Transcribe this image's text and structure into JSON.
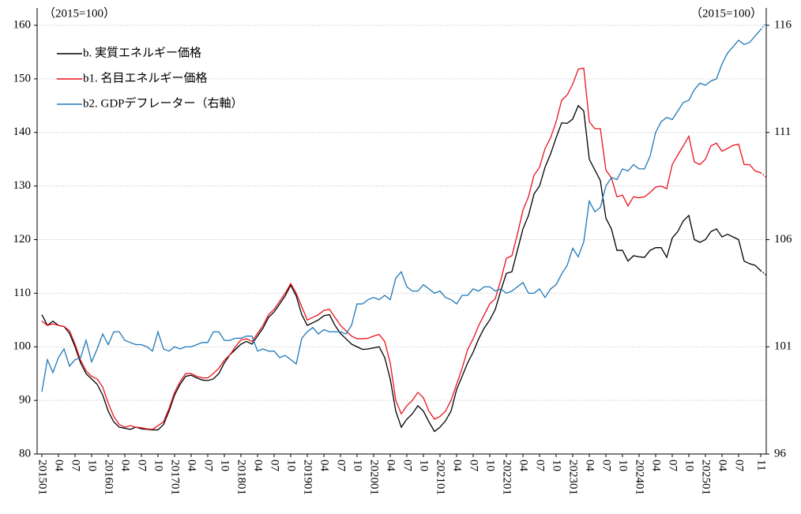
{
  "chart_data": {
    "type": "line",
    "left_note": "（2015=100）",
    "right_note": "（2015=100）",
    "categories": [
      "201501",
      null,
      null,
      "04",
      null,
      null,
      "07",
      null,
      null,
      "10",
      null,
      null,
      "201601",
      null,
      null,
      "04",
      null,
      null,
      "07",
      null,
      null,
      "10",
      null,
      null,
      "201701",
      null,
      null,
      "04",
      null,
      null,
      "07",
      null,
      null,
      "10",
      null,
      null,
      "201801",
      null,
      null,
      "04",
      null,
      null,
      "07",
      null,
      null,
      "10",
      null,
      null,
      "201901",
      null,
      null,
      "04",
      null,
      null,
      "07",
      null,
      null,
      "10",
      null,
      null,
      "202001",
      null,
      null,
      "04",
      null,
      null,
      "07",
      null,
      null,
      "10",
      null,
      null,
      "202101",
      null,
      null,
      "04",
      null,
      null,
      "07",
      null,
      null,
      "10",
      null,
      null,
      "202201",
      null,
      null,
      "04",
      null,
      null,
      "07",
      null,
      null,
      "10",
      null,
      null,
      "202301",
      null,
      null,
      "04",
      null,
      null,
      "07",
      null,
      null,
      "10",
      null,
      null,
      "202401",
      null,
      null,
      "04",
      null,
      null,
      "07",
      null,
      null,
      "10",
      null,
      null,
      "202501",
      null,
      null,
      "04",
      null,
      null,
      "07",
      null,
      null,
      null,
      "11",
      null
    ],
    "ylim": [
      80,
      160
    ],
    "yticks": [
      80,
      90,
      100,
      110,
      120,
      130,
      140,
      150,
      160
    ],
    "y2lim": [
      96,
      116
    ],
    "y2ticks": [
      96,
      101,
      106,
      111,
      116
    ],
    "grid": true,
    "legend": "upper left",
    "tail_style": "dotted",
    "series": [
      {
        "name": "b. 実質エネルギー価格",
        "color": "#000000",
        "values": [
          106,
          104,
          104.8,
          104,
          103.8,
          102.5,
          100,
          97,
          95,
          94,
          93,
          91,
          88,
          86,
          85,
          84.8,
          84.6,
          85,
          84.7,
          84.6,
          84.5,
          84.5,
          85.5,
          88,
          91,
          93,
          94.5,
          94.7,
          94.2,
          93.8,
          93.7,
          94,
          95,
          97,
          98.5,
          99.5,
          100.5,
          101,
          100.5,
          102,
          103.5,
          105.5,
          106.5,
          108,
          109.5,
          111.5,
          109.5,
          106,
          104,
          104.5,
          105,
          105.8,
          106,
          104,
          102.5,
          101.5,
          100.5,
          100,
          99.5,
          99.6,
          99.8,
          100,
          98,
          94,
          88,
          85,
          86.5,
          87.5,
          89,
          88,
          86,
          84.2,
          85,
          86.2,
          88,
          92,
          94.5,
          97,
          99,
          101.5,
          103.5,
          105,
          107,
          110.5,
          113.7,
          114,
          118,
          122,
          124.5,
          128.5,
          130,
          133.5,
          136,
          139,
          141.8,
          141.7,
          142.5,
          145,
          144,
          135,
          133,
          131,
          124,
          122,
          118,
          118,
          116,
          117,
          116.8,
          116.7,
          118,
          118.5,
          118.5,
          116.7,
          120.3,
          121.5,
          123.5,
          124.5,
          120,
          119.5,
          120,
          121.5,
          122,
          120.5,
          121,
          120.5,
          120,
          116,
          115.5,
          115.2,
          114.2,
          113.4
        ]
      },
      {
        "name": "b1. 名目エネルギー価格",
        "color": "#e8141c",
        "values": [
          104.8,
          104,
          104.3,
          104,
          103.8,
          103,
          100.5,
          97.5,
          95.5,
          94.5,
          94,
          92.5,
          89.5,
          87,
          85.5,
          85,
          85.3,
          85,
          84.9,
          84.7,
          84.6,
          85.3,
          86,
          88.5,
          91.5,
          93.5,
          95,
          95,
          94.5,
          94.2,
          94.2,
          95,
          96,
          97.5,
          98.5,
          100,
          101.3,
          101.5,
          101,
          102.5,
          104,
          106,
          107,
          108.5,
          110,
          111.8,
          110,
          107.5,
          105,
          105.5,
          106,
          106.8,
          107,
          105.5,
          104,
          103,
          102,
          101.5,
          101.5,
          101.6,
          102,
          102.3,
          101,
          97,
          90,
          87.5,
          89,
          90,
          91.5,
          90.5,
          88,
          86.5,
          87,
          88,
          90,
          93,
          96,
          99.5,
          101.5,
          104,
          106,
          108,
          109,
          112.5,
          116.5,
          117,
          121,
          125.5,
          128,
          132,
          133.5,
          137,
          139,
          142,
          146,
          147,
          149,
          151.8,
          152,
          142,
          140.7,
          140.7,
          133,
          131.5,
          128,
          128.3,
          126.3,
          128,
          127.8,
          128,
          128.8,
          129.8,
          130,
          129.5,
          134,
          135.8,
          137.5,
          139.3,
          134.5,
          134,
          135,
          137.5,
          138,
          136.5,
          137,
          137.6,
          137.8,
          134,
          134,
          132.8,
          132.5,
          131.6
        ]
      },
      {
        "name": "b2. GDPデフレーター（右軸）",
        "color": "#1f78b8",
        "axis": "y2",
        "values": [
          98.9,
          100.4,
          99.8,
          100.5,
          100.9,
          100.1,
          100.4,
          100.5,
          101.3,
          100.3,
          100.9,
          101.6,
          101.1,
          101.7,
          101.7,
          101.3,
          101.2,
          101.1,
          101.1,
          101,
          100.8,
          101.7,
          100.9,
          100.8,
          101,
          100.9,
          101,
          101,
          101.1,
          101.2,
          101.2,
          101.7,
          101.7,
          101.3,
          101.3,
          101.4,
          101.4,
          101.5,
          101.5,
          100.8,
          100.9,
          100.8,
          100.8,
          100.5,
          100.6,
          100.4,
          100.2,
          101.4,
          101.7,
          101.9,
          101.6,
          101.8,
          101.7,
          101.7,
          101.7,
          101.6,
          102,
          103,
          103,
          103.2,
          103.3,
          103.2,
          103.4,
          103.2,
          104.2,
          104.5,
          103.8,
          103.6,
          103.6,
          103.9,
          103.7,
          103.5,
          103.6,
          103.3,
          103.2,
          103,
          103.4,
          103.4,
          103.7,
          103.6,
          103.8,
          103.8,
          103.6,
          103.7,
          103.5,
          103.6,
          103.8,
          104,
          103.5,
          103.5,
          103.7,
          103.3,
          103.7,
          103.9,
          104.4,
          104.8,
          105.6,
          105.2,
          105.9,
          107.8,
          107.3,
          107.5,
          108.5,
          108.9,
          108.8,
          109.3,
          109.2,
          109.5,
          109.3,
          109.3,
          109.9,
          111,
          111.5,
          111.7,
          111.6,
          112,
          112.4,
          112.5,
          113,
          113.3,
          113.2,
          113.4,
          113.5,
          114.2,
          114.7,
          115,
          115.3,
          115.1,
          115.2,
          115.5,
          115.8,
          116.1
        ]
      }
    ]
  }
}
